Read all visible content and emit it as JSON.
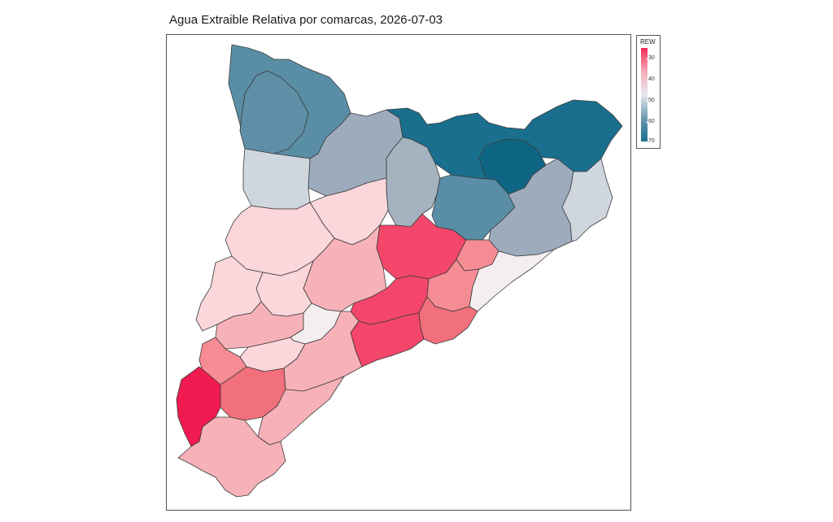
{
  "title": "Agua Extraible Relativa por comarcas, 2026-07-03",
  "legend": {
    "title": "REW",
    "ticks": [
      "30",
      "40",
      "50",
      "60",
      "70"
    ],
    "colors": {
      "low": "#f22a5a",
      "mid": "#e8e8ee",
      "high": "#1a6f8e"
    }
  },
  "map_colors": {
    "region_pyrenees_west": "#5a8ea6",
    "region_pyrenees_mid": "#9dacbd",
    "region_pyrenees_east": "#1a6f8e",
    "region_north_east": "#a5b3c1",
    "region_light_grey": "#d0d6de",
    "region_pale_pink": "#fbd6da",
    "region_light_pink": "#f6b2b8",
    "region_salmon": "#f58c94",
    "region_coral": "#f26f7c",
    "region_red": "#f4466a",
    "region_deep_red": "#f01a50",
    "region_near_white": "#f4eef0"
  }
}
